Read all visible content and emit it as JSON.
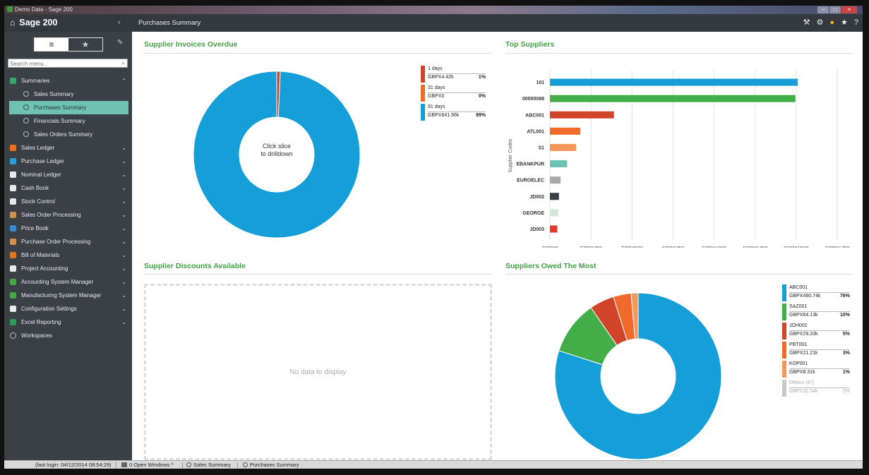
{
  "window": {
    "title": "Demo Data - Sage 200",
    "controls": [
      "–",
      "□",
      "×"
    ]
  },
  "header": {
    "brand": "Sage 200",
    "collapse_glyph": "‹",
    "page_title": "Purchases Summary",
    "icons": [
      "tools-icon",
      "gear-icon",
      "lightbulb-icon",
      "star-icon",
      "help-icon"
    ]
  },
  "sidebar": {
    "search_placeholder": "Search menu...",
    "sections": [
      {
        "label": "Summaries",
        "icon": "summaries-icon",
        "color": "#3aa46a",
        "expanded": true
      },
      {
        "label": "Sales Summary",
        "sub": true
      },
      {
        "label": "Purchases Summary",
        "sub": true,
        "active": true
      },
      {
        "label": "Financials Summary",
        "sub": true
      },
      {
        "label": "Sales Orders Summary",
        "sub": true
      },
      {
        "label": "Sales Ledger",
        "icon": "sales-ledger-icon",
        "color": "#f07020"
      },
      {
        "label": "Purchase Ledger",
        "icon": "purchase-ledger-icon",
        "color": "#2aa0d8"
      },
      {
        "label": "Nominal Ledger",
        "icon": "nominal-ledger-icon",
        "color": "#e8e8e8"
      },
      {
        "label": "Cash Book",
        "icon": "cash-book-icon",
        "color": "#e8e8e8"
      },
      {
        "label": "Stock Control",
        "icon": "stock-control-icon",
        "color": "#e8e8e8"
      },
      {
        "label": "Sales Order Processing",
        "icon": "sop-icon",
        "color": "#d09050"
      },
      {
        "label": "Price Book",
        "icon": "price-book-icon",
        "color": "#3a8ad0"
      },
      {
        "label": "Purchase Order Processing",
        "icon": "pop-icon",
        "color": "#d09050"
      },
      {
        "label": "Bill of Materials",
        "icon": "bom-icon",
        "color": "#e07820"
      },
      {
        "label": "Project Accounting",
        "icon": "project-accounting-icon",
        "color": "#e8e8e8"
      },
      {
        "label": "Accounting System Manager",
        "icon": "asm-icon",
        "color": "#48a848"
      },
      {
        "label": "Manufacturing System Manager",
        "icon": "msm-icon",
        "color": "#48a848"
      },
      {
        "label": "Configuration Settings",
        "icon": "config-icon",
        "color": "#e8e8e8"
      },
      {
        "label": "Excel Reporting",
        "icon": "excel-icon",
        "color": "#2a9a5a"
      },
      {
        "label": "Workspaces",
        "icon": "workspaces-icon",
        "color": "none",
        "no_chevron": true
      }
    ]
  },
  "panels": {
    "overdue": {
      "title": "Supplier Invoices Overdue",
      "center_line1": "Click slice",
      "center_line2": "to drilldown"
    },
    "top_suppliers": {
      "title": "Top Suppliers"
    },
    "discounts": {
      "title": "Supplier Discounts Available",
      "empty": "No data to display"
    },
    "owed": {
      "title": "Suppliers Owed The Most"
    }
  },
  "chart_data": [
    {
      "type": "pie",
      "title": "Supplier Invoices Overdue",
      "slices": [
        {
          "label": "1 days",
          "amount": "GBPX4.42k",
          "pct": "1%",
          "value": 4.42,
          "color": "#d0442a"
        },
        {
          "label": "31 days",
          "amount": "GBPX0",
          "pct": "0%",
          "value": 0,
          "color": "#f06a2a"
        },
        {
          "label": "91 days",
          "amount": "GBPX641.66k",
          "pct": "99%",
          "value": 641.66,
          "color": "#169ed8"
        }
      ]
    },
    {
      "type": "bar",
      "title": "Top Suppliers",
      "ylabel": "Supplier Codes",
      "categories": [
        "101",
        "00000088",
        "ABC001",
        "ATL001",
        "S1",
        "EBANKPUR",
        "EUROELEC",
        "JD002",
        "GEORGE",
        "JD003"
      ],
      "values": [
        1510,
        1495,
        390,
        185,
        160,
        105,
        65,
        55,
        50,
        45
      ],
      "colors": [
        "#169ed8",
        "#43ad48",
        "#d0442a",
        "#f06a2a",
        "#f5965a",
        "#6cc3b4",
        "#a8a8a8",
        "#3a3e44",
        "#cfe8d8",
        "#e0382a"
      ],
      "xticks": [
        "GBPX0",
        "GBPX250",
        "GBPX500",
        "GBPX750",
        "GBPX1000",
        "GBPX1250",
        "GBPX1500",
        "GBPX1750"
      ],
      "xlim": [
        0,
        1750
      ],
      "grid": true
    },
    {
      "type": "pie",
      "title": "Suppliers Owed The Most",
      "slices": [
        {
          "label": "ABC001",
          "amount": "GBPX490.74k",
          "pct": "76%",
          "value": 490.74,
          "color": "#169ed8"
        },
        {
          "label": "SAZ001",
          "amount": "GBPX64.13k",
          "pct": "10%",
          "value": 64.13,
          "color": "#43ad48"
        },
        {
          "label": "JOH002",
          "amount": "GBPX29.33k",
          "pct": "5%",
          "value": 29.33,
          "color": "#d0442a"
        },
        {
          "label": "PBT001",
          "amount": "GBPX21.21k",
          "pct": "3%",
          "value": 21.21,
          "color": "#f06a2a"
        },
        {
          "label": "KOP001",
          "amount": "GBPX8.31k",
          "pct": "1%",
          "value": 8.31,
          "color": "#f5965a"
        },
        {
          "label": "Others (47)",
          "amount": "GBPX32.54k",
          "pct": "5%",
          "value": 0,
          "color": "#c8c8c8",
          "muted": true
        }
      ]
    }
  ],
  "taskbar": {
    "last_login": "(last login: 04/12/2014 08:54:29)",
    "open_windows": "0 Open Windows ^",
    "tab1": "Sales Summary",
    "tab2": "Purchases Summary"
  }
}
